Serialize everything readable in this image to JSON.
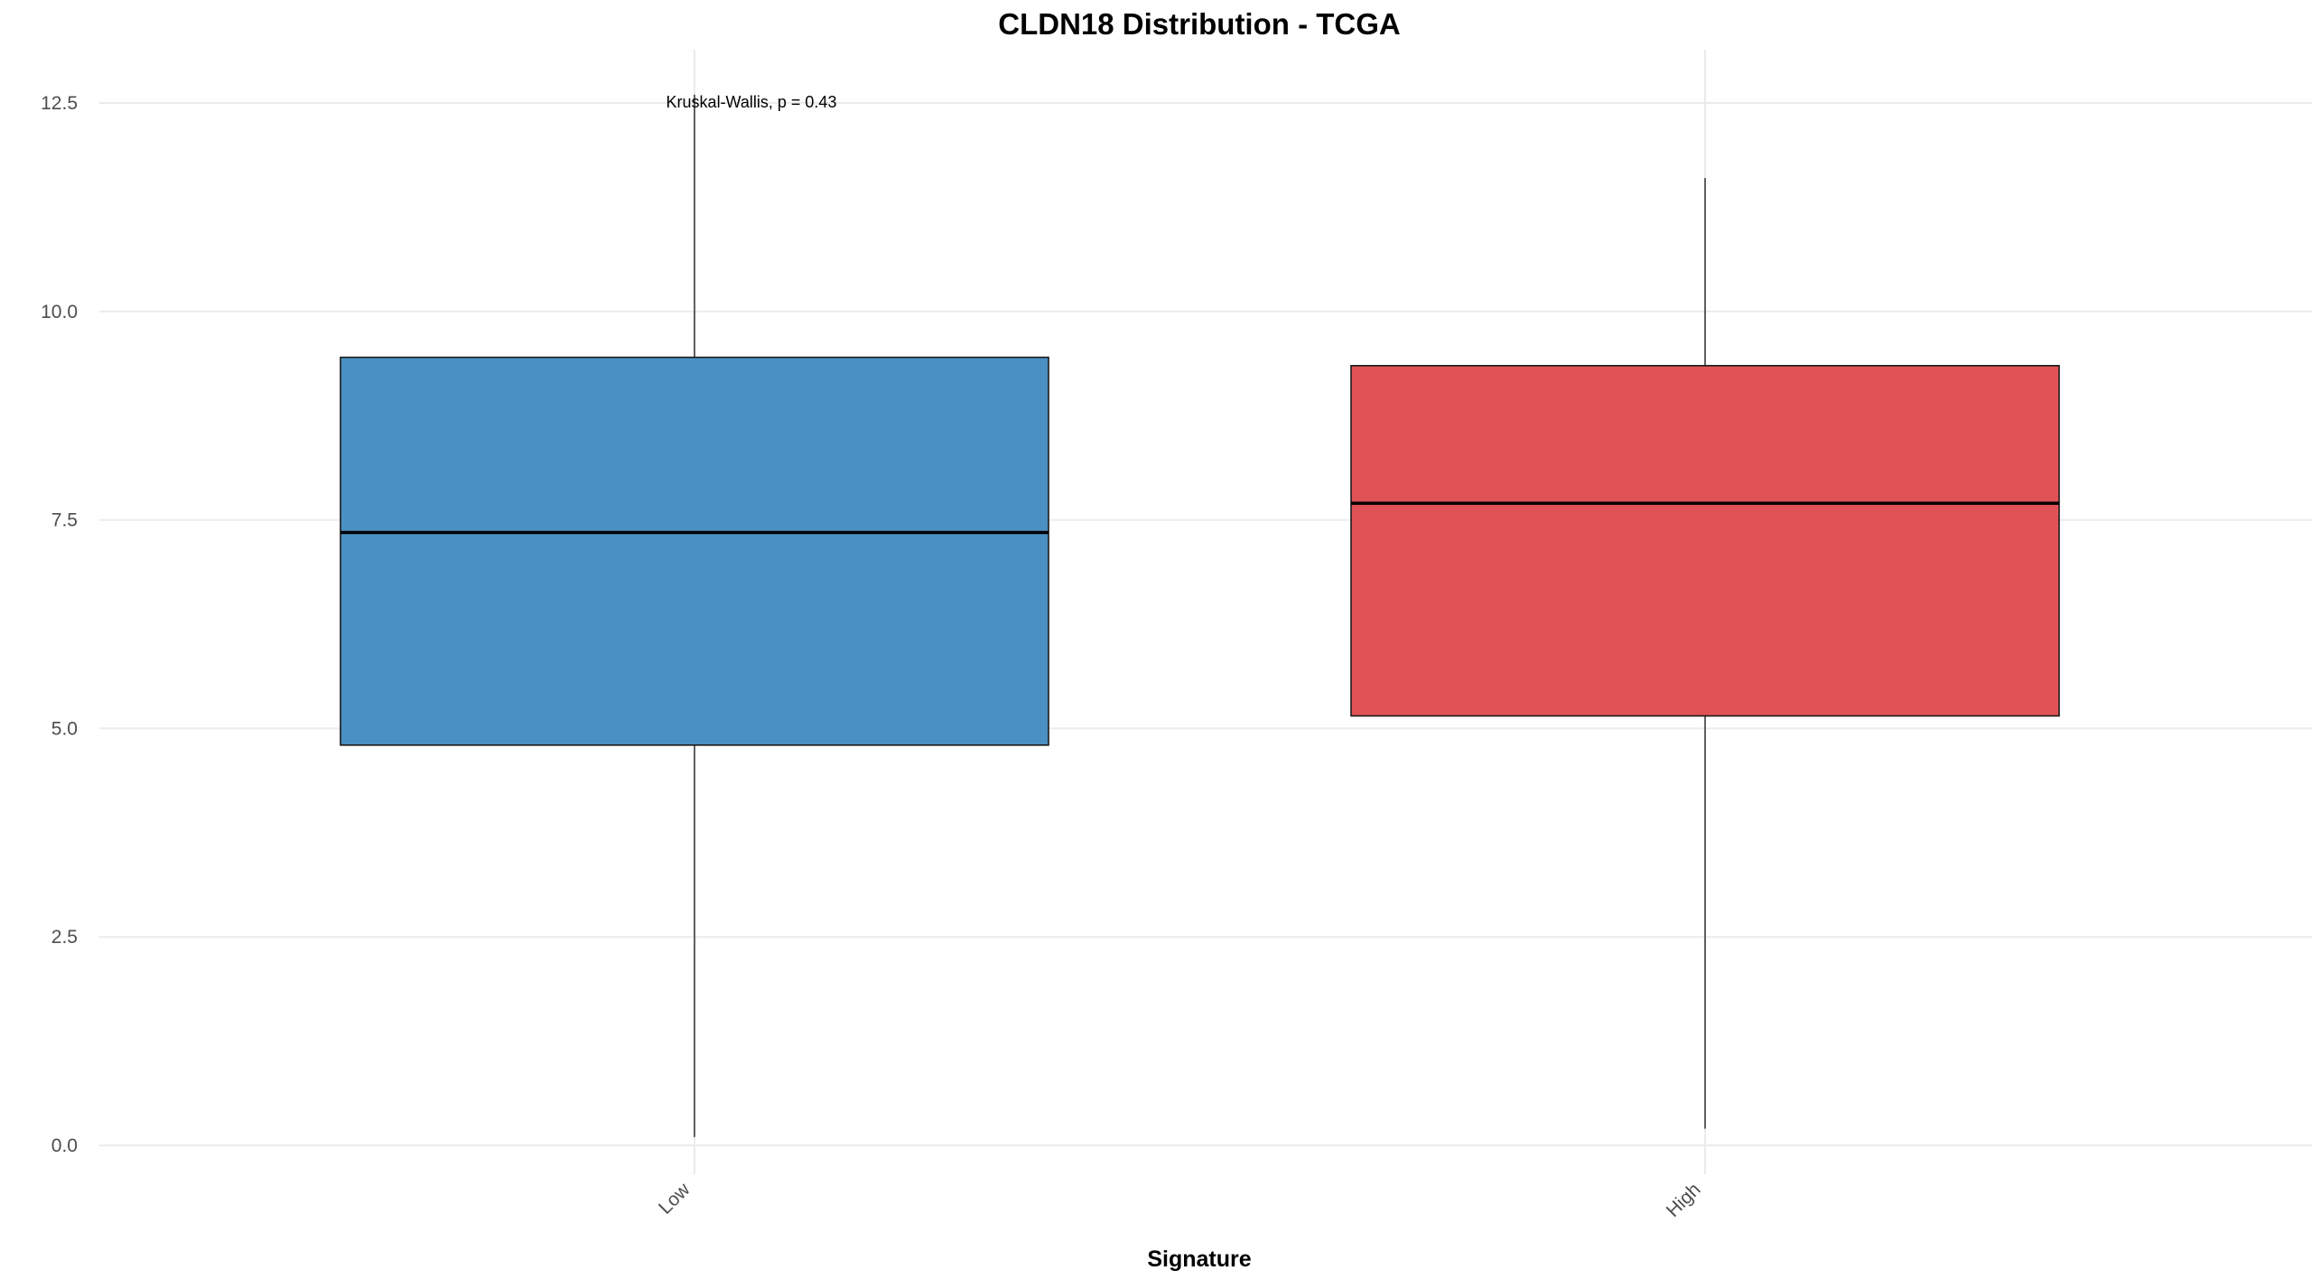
{
  "chart_data": {
    "type": "box",
    "title": "CLDN18 Distribution - TCGA",
    "xlabel": "Signature",
    "ylabel": "",
    "categories": [
      "Low",
      "High"
    ],
    "ylim": [
      -0.3,
      13.1
    ],
    "y_ticks": [
      0.0,
      2.5,
      5.0,
      7.5,
      10.0,
      12.5
    ],
    "y_tick_labels": [
      "0.0",
      "2.5",
      "5.0",
      "7.5",
      "10.0",
      "12.5"
    ],
    "boxes": [
      {
        "category": "Low",
        "min": 0.1,
        "q1": 4.8,
        "median": 7.35,
        "q3": 9.45,
        "max": 12.6,
        "color": "#4a90c2"
      },
      {
        "category": "High",
        "min": 0.2,
        "q1": 5.15,
        "median": 7.7,
        "q3": 9.35,
        "max": 11.6,
        "color": "#df5356"
      }
    ],
    "annotation": "Kruskal-Wallis, p = 0.43",
    "grid": true,
    "legend": "none"
  }
}
